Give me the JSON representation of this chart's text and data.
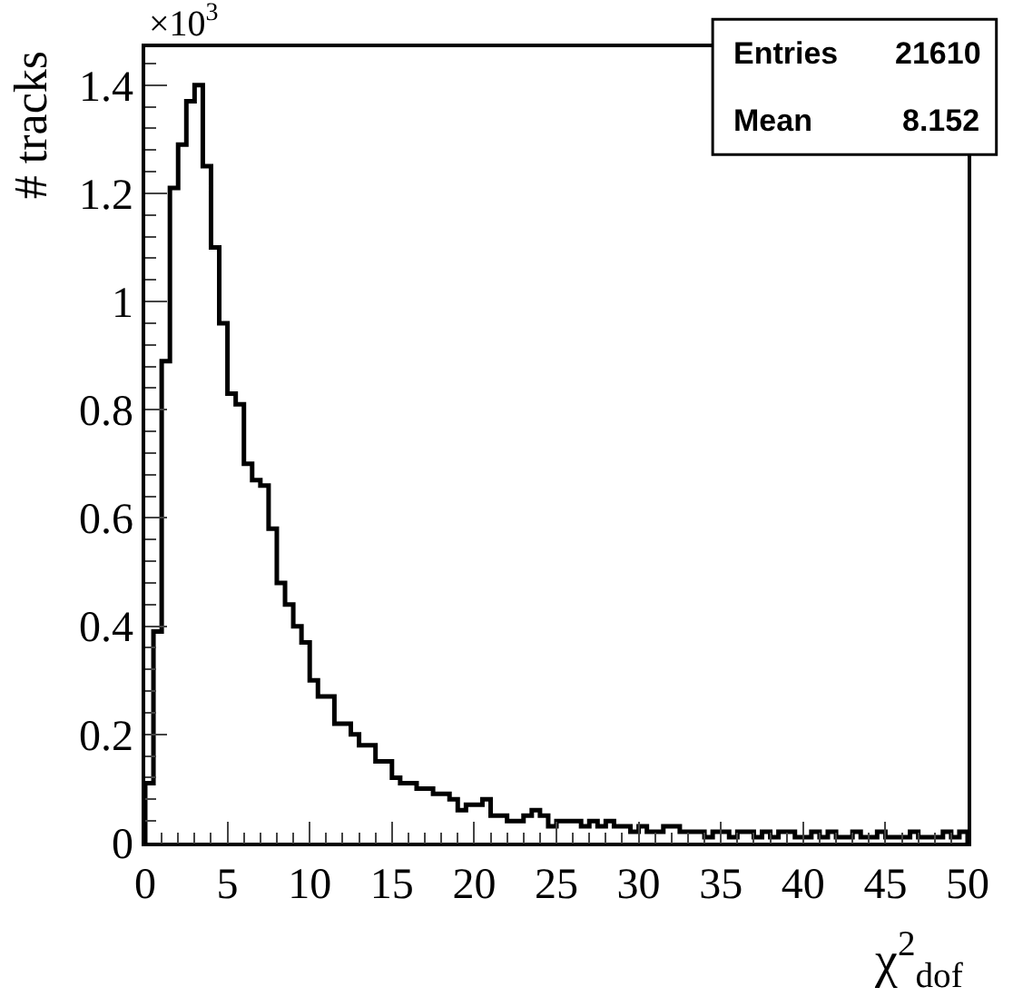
{
  "chart_data": {
    "type": "histogram",
    "ylabel": "# tracks",
    "xlabel": "χ$^{2}$$_{dof}$",
    "annotations": [
      "×10$^{3}$",
      "Entries",
      "21610",
      "Mean",
      "8.152"
    ],
    "bins": [
      0,
      0.5,
      1,
      1.5,
      2,
      2.5,
      3,
      3.5,
      4,
      4.5,
      5,
      5.5,
      6,
      6.5,
      7,
      7.5,
      8,
      8.5,
      9,
      9.5,
      10,
      10.5,
      11,
      11.5,
      12,
      12.5,
      13,
      13.5,
      14,
      14.5,
      15,
      15.5,
      16,
      16.5,
      17,
      17.5,
      18,
      18.5,
      19,
      19.5,
      20,
      20.5,
      21,
      21.5,
      22,
      22.5,
      23,
      23.5,
      24,
      24.5,
      25,
      25.5,
      26,
      26.5,
      27,
      27.5,
      28,
      28.5,
      29,
      29.5,
      30,
      30.5,
      31,
      31.5,
      32,
      32.5,
      33,
      33.5,
      34,
      34.5,
      35,
      35.5,
      36,
      36.5,
      37,
      37.5,
      38,
      38.5,
      39,
      39.5,
      40,
      40.5,
      41,
      41.5,
      42,
      42.5,
      43,
      43.5,
      44,
      44.5,
      45,
      45.5,
      46,
      46.5,
      47,
      47.5,
      48,
      48.5,
      49,
      49.5,
      50
    ],
    "values": [
      0.11,
      0.39,
      0.89,
      1.21,
      1.29,
      1.37,
      1.4,
      1.25,
      1.1,
      0.96,
      0.83,
      0.81,
      0.7,
      0.67,
      0.66,
      0.58,
      0.48,
      0.44,
      0.4,
      0.37,
      0.3,
      0.27,
      0.27,
      0.22,
      0.22,
      0.2,
      0.18,
      0.18,
      0.15,
      0.15,
      0.12,
      0.11,
      0.11,
      0.1,
      0.1,
      0.09,
      0.09,
      0.08,
      0.06,
      0.07,
      0.07,
      0.08,
      0.05,
      0.05,
      0.04,
      0.04,
      0.05,
      0.06,
      0.05,
      0.03,
      0.04,
      0.04,
      0.04,
      0.03,
      0.04,
      0.03,
      0.04,
      0.03,
      0.03,
      0.02,
      0.03,
      0.02,
      0.02,
      0.03,
      0.03,
      0.02,
      0.02,
      0.02,
      0.01,
      0.02,
      0.02,
      0.01,
      0.02,
      0.02,
      0.01,
      0.02,
      0.01,
      0.02,
      0.02,
      0.01,
      0.01,
      0.02,
      0.01,
      0.02,
      0.01,
      0.01,
      0.02,
      0.01,
      0.01,
      0.02,
      0.01,
      0.01,
      0.01,
      0.02,
      0.01,
      0.01,
      0.01,
      0.02,
      0.01,
      0.02
    ],
    "color": "#000000",
    "xlim": [
      0,
      50
    ],
    "xticks": [
      0,
      5,
      10,
      15,
      20,
      25,
      30,
      35,
      40,
      45,
      50
    ],
    "ylim": [
      0,
      1.47
    ],
    "yticks": [
      0,
      0.2,
      0.4,
      0.6,
      0.8,
      1,
      1.2,
      1.4
    ]
  }
}
